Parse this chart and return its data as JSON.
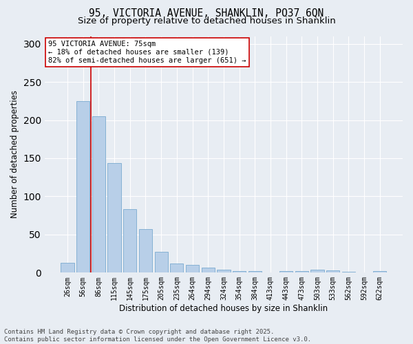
{
  "title_line1": "95, VICTORIA AVENUE, SHANKLIN, PO37 6QN",
  "title_line2": "Size of property relative to detached houses in Shanklin",
  "xlabel": "Distribution of detached houses by size in Shanklin",
  "ylabel": "Number of detached properties",
  "categories": [
    "26sqm",
    "56sqm",
    "86sqm",
    "115sqm",
    "145sqm",
    "175sqm",
    "205sqm",
    "235sqm",
    "264sqm",
    "294sqm",
    "324sqm",
    "354sqm",
    "384sqm",
    "413sqm",
    "443sqm",
    "473sqm",
    "503sqm",
    "533sqm",
    "562sqm",
    "592sqm",
    "622sqm"
  ],
  "values": [
    13,
    225,
    205,
    144,
    83,
    57,
    27,
    12,
    10,
    7,
    4,
    2,
    2,
    0,
    2,
    2,
    4,
    3,
    1,
    0,
    2
  ],
  "bar_color": "#b8cfe8",
  "bar_edge_color": "#7aaad0",
  "vline_color": "#cc0000",
  "annotation_title": "95 VICTORIA AVENUE: 75sqm",
  "annotation_line1": "← 18% of detached houses are smaller (139)",
  "annotation_line2": "82% of semi-detached houses are larger (651) →",
  "annotation_box_facecolor": "white",
  "annotation_box_edgecolor": "#cc0000",
  "ylim": [
    0,
    310
  ],
  "yticks": [
    0,
    50,
    100,
    150,
    200,
    250,
    300
  ],
  "footer_line1": "Contains HM Land Registry data © Crown copyright and database right 2025.",
  "footer_line2": "Contains public sector information licensed under the Open Government Licence v3.0.",
  "fig_facecolor": "#e8edf3",
  "plot_facecolor": "#e8edf3",
  "title_fontsize": 10.5,
  "subtitle_fontsize": 9.5,
  "tick_label_fontsize": 7,
  "axis_label_fontsize": 8.5,
  "annotation_fontsize": 7.5,
  "footer_fontsize": 6.5,
  "grid_color": "white",
  "vline_x_index": 1.5
}
